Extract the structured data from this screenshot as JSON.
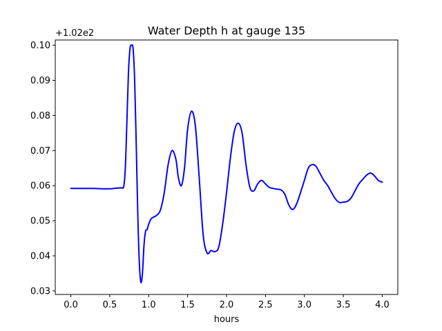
{
  "chart_data": {
    "type": "line",
    "title": "Water Depth h at gauge 135",
    "xlabel": "hours",
    "ylabel": "",
    "offset_label": "+1.02e2",
    "xlim": [
      -0.2,
      4.2
    ],
    "ylim": [
      0.029,
      0.1015
    ],
    "x_ticks": [
      0.0,
      0.5,
      1.0,
      1.5,
      2.0,
      2.5,
      3.0,
      3.5,
      4.0
    ],
    "x_tick_labels": [
      "0.0",
      "0.5",
      "1.0",
      "1.5",
      "2.0",
      "2.5",
      "3.0",
      "3.5",
      "4.0"
    ],
    "y_ticks": [
      0.03,
      0.04,
      0.05,
      0.06,
      0.07,
      0.08,
      0.09,
      0.1
    ],
    "y_tick_labels": [
      "0.03",
      "0.04",
      "0.05",
      "0.06",
      "0.07",
      "0.08",
      "0.09",
      "0.10"
    ],
    "grid": false,
    "colors": {
      "line": "#0000ff",
      "axes": "#000000"
    },
    "series": [
      {
        "x": [
          0.0,
          0.1,
          0.2,
          0.3,
          0.4,
          0.5,
          0.55,
          0.6,
          0.65,
          0.68,
          0.7,
          0.72,
          0.74,
          0.76,
          0.78,
          0.8,
          0.82,
          0.84,
          0.86,
          0.88,
          0.9,
          0.92,
          0.94,
          0.96,
          0.98,
          1.0,
          1.03,
          1.06,
          1.1,
          1.15,
          1.2,
          1.25,
          1.3,
          1.35,
          1.38,
          1.42,
          1.46,
          1.5,
          1.55,
          1.6,
          1.65,
          1.7,
          1.75,
          1.8,
          1.85,
          1.9,
          1.95,
          2.0,
          2.05,
          2.1,
          2.15,
          2.2,
          2.25,
          2.3,
          2.35,
          2.4,
          2.45,
          2.5,
          2.55,
          2.6,
          2.65,
          2.7,
          2.75,
          2.8,
          2.85,
          2.9,
          2.95,
          3.0,
          3.05,
          3.1,
          3.15,
          3.2,
          3.25,
          3.3,
          3.35,
          3.4,
          3.45,
          3.5,
          3.55,
          3.6,
          3.65,
          3.7,
          3.75,
          3.8,
          3.85,
          3.9,
          3.95,
          4.0
        ],
        "y": [
          0.0592,
          0.0592,
          0.0592,
          0.0592,
          0.0591,
          0.0591,
          0.0592,
          0.0593,
          0.0594,
          0.0598,
          0.065,
          0.078,
          0.092,
          0.099,
          0.1,
          0.099,
          0.09,
          0.072,
          0.052,
          0.038,
          0.0325,
          0.035,
          0.043,
          0.047,
          0.0475,
          0.049,
          0.0505,
          0.051,
          0.0515,
          0.053,
          0.058,
          0.066,
          0.07,
          0.0675,
          0.0625,
          0.06,
          0.065,
          0.076,
          0.0812,
          0.077,
          0.062,
          0.046,
          0.0408,
          0.0415,
          0.0412,
          0.0425,
          0.049,
          0.058,
          0.068,
          0.0755,
          0.0778,
          0.075,
          0.066,
          0.0595,
          0.0585,
          0.0605,
          0.0615,
          0.0605,
          0.0595,
          0.0592,
          0.059,
          0.0588,
          0.0575,
          0.0545,
          0.0532,
          0.0548,
          0.058,
          0.0615,
          0.065,
          0.066,
          0.0655,
          0.0635,
          0.0615,
          0.06,
          0.058,
          0.0562,
          0.0552,
          0.0553,
          0.0555,
          0.0565,
          0.0585,
          0.0605,
          0.0618,
          0.063,
          0.0636,
          0.0628,
          0.0615,
          0.061
        ]
      }
    ]
  }
}
